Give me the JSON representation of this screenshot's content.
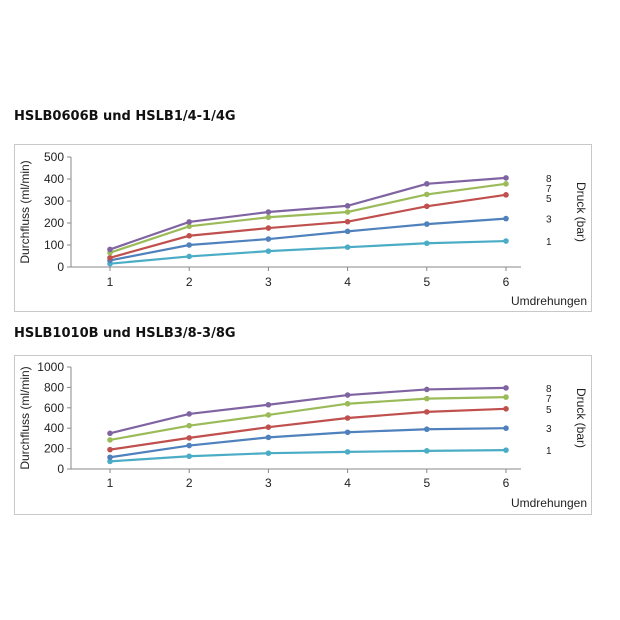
{
  "charts": [
    {
      "heading": "HSLB0606B und HSLB1/4-1/4G",
      "chart_data": {
        "type": "line",
        "ylabel": "Durchfluss (ml/min)",
        "xlabel": "Umdrehungen",
        "right_label": "Druck (bar)",
        "categories": [
          "1",
          "2",
          "3",
          "4",
          "5",
          "6"
        ],
        "ylim": [
          0,
          500
        ],
        "yticks": [
          "0",
          "100",
          "200",
          "300",
          "400",
          "500"
        ],
        "grid": false,
        "legend": "right-end labels",
        "series": [
          {
            "name": "1",
            "color": "#4bacc6",
            "values": [
              15,
              48,
              72,
              90,
              108,
              118
            ]
          },
          {
            "name": "3",
            "color": "#4f81bd",
            "values": [
              30,
              100,
              127,
              162,
              195,
              220
            ]
          },
          {
            "name": "5",
            "color": "#c0504d",
            "values": [
              42,
              142,
              177,
              206,
              276,
              328
            ]
          },
          {
            "name": "7",
            "color": "#9bbb59",
            "values": [
              65,
              185,
              226,
              250,
              330,
              378
            ]
          },
          {
            "name": "8",
            "color": "#8064a2",
            "values": [
              80,
              205,
              250,
              278,
              378,
              405
            ]
          }
        ]
      }
    },
    {
      "heading": "HSLB1010B und HSLB3/8-3/8G",
      "chart_data": {
        "type": "line",
        "ylabel": "Durchfluss (ml/min)",
        "xlabel": "Umdrehungen",
        "right_label": "Druck (bar)",
        "categories": [
          "1",
          "2",
          "3",
          "4",
          "5",
          "6"
        ],
        "ylim": [
          0,
          1000
        ],
        "yticks": [
          "0",
          "200",
          "400",
          "600",
          "800",
          "1000"
        ],
        "grid": false,
        "legend": "right-end labels",
        "series": [
          {
            "name": "1",
            "color": "#4bacc6",
            "values": [
              75,
              125,
              155,
              168,
              178,
              185
            ]
          },
          {
            "name": "3",
            "color": "#4f81bd",
            "values": [
              115,
              230,
              310,
              360,
              390,
              400
            ]
          },
          {
            "name": "5",
            "color": "#c0504d",
            "values": [
              190,
              305,
              410,
              500,
              560,
              590
            ]
          },
          {
            "name": "7",
            "color": "#9bbb59",
            "values": [
              285,
              425,
              530,
              640,
              690,
              705
            ]
          },
          {
            "name": "8",
            "color": "#8064a2",
            "values": [
              350,
              540,
              630,
              725,
              780,
              795
            ]
          }
        ]
      }
    }
  ]
}
